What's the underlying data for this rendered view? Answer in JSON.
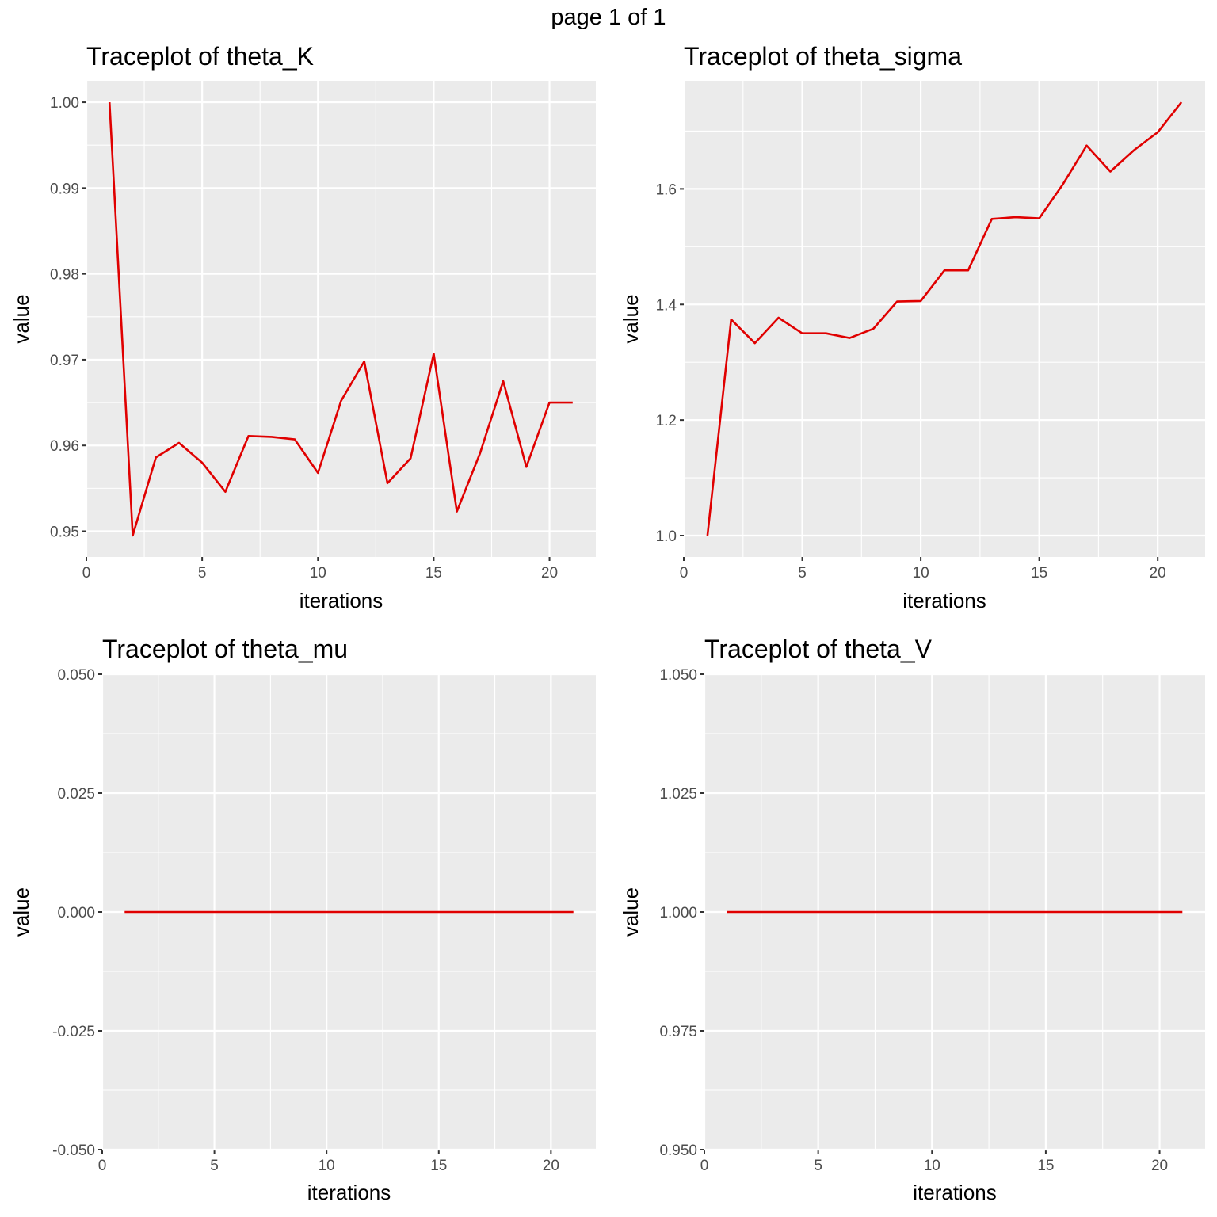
{
  "page_title": "page 1 of 1",
  "chart_data": [
    {
      "type": "line",
      "title": "Traceplot of theta_K",
      "xlabel": "iterations",
      "ylabel": "value",
      "xlim": [
        0,
        22
      ],
      "ylim": [
        0.947,
        1.0025
      ],
      "x_ticks": [
        0,
        5,
        10,
        15,
        20
      ],
      "y_ticks": [
        0.95,
        0.96,
        0.97,
        0.98,
        0.99,
        1.0
      ],
      "y_tick_labels": [
        "0.95",
        "0.96",
        "0.97",
        "0.98",
        "0.99",
        "1.00"
      ],
      "line_color": "#e00000",
      "x": [
        1,
        2,
        3,
        4,
        5,
        6,
        7,
        8,
        9,
        10,
        11,
        12,
        13,
        14,
        15,
        16,
        17,
        18,
        19,
        20,
        21
      ],
      "values": [
        1.0,
        0.9495,
        0.9586,
        0.9603,
        0.958,
        0.9546,
        0.9611,
        0.961,
        0.9607,
        0.9568,
        0.9652,
        0.9698,
        0.9556,
        0.9585,
        0.9707,
        0.9523,
        0.9591,
        0.9675,
        0.9575,
        0.965,
        0.965
      ],
      "grid": true
    },
    {
      "type": "line",
      "title": "Traceplot of theta_sigma",
      "xlabel": "iterations",
      "ylabel": "value",
      "xlim": [
        0,
        22
      ],
      "ylim": [
        0.963,
        1.787
      ],
      "x_ticks": [
        0,
        5,
        10,
        15,
        20
      ],
      "y_ticks": [
        1.0,
        1.2,
        1.4,
        1.6
      ],
      "y_tick_labels": [
        "1.0",
        "1.2",
        "1.4",
        "1.6"
      ],
      "line_color": "#e00000",
      "x": [
        1,
        2,
        3,
        4,
        5,
        6,
        7,
        8,
        9,
        10,
        11,
        12,
        13,
        14,
        15,
        16,
        17,
        18,
        19,
        20,
        21
      ],
      "values": [
        1.0,
        1.374,
        1.333,
        1.377,
        1.35,
        1.35,
        1.342,
        1.358,
        1.405,
        1.406,
        1.459,
        1.459,
        1.548,
        1.551,
        1.549,
        1.608,
        1.675,
        1.63,
        1.667,
        1.698,
        1.75
      ],
      "grid": true
    },
    {
      "type": "line",
      "title": "Traceplot of theta_mu",
      "xlabel": "iterations",
      "ylabel": "value",
      "xlim": [
        0,
        22
      ],
      "ylim": [
        -0.05,
        0.05
      ],
      "x_ticks": [
        0,
        5,
        10,
        15,
        20
      ],
      "y_ticks": [
        -0.05,
        -0.025,
        0.0,
        0.025,
        0.05
      ],
      "y_tick_labels": [
        "-0.050",
        "-0.025",
        "0.000",
        "0.025",
        "0.050"
      ],
      "line_color": "#e00000",
      "x": [
        1,
        21
      ],
      "values": [
        0.0,
        0.0
      ],
      "grid": true
    },
    {
      "type": "line",
      "title": "Traceplot of theta_V",
      "xlabel": "iterations",
      "ylabel": "value",
      "xlim": [
        0,
        22
      ],
      "ylim": [
        0.95,
        1.05
      ],
      "x_ticks": [
        0,
        5,
        10,
        15,
        20
      ],
      "y_ticks": [
        0.95,
        0.975,
        1.0,
        1.025,
        1.05
      ],
      "y_tick_labels": [
        "0.950",
        "0.975",
        "1.000",
        "1.025",
        "1.050"
      ],
      "line_color": "#e00000",
      "x": [
        1,
        21
      ],
      "values": [
        1.0,
        1.0
      ],
      "grid": true
    }
  ]
}
